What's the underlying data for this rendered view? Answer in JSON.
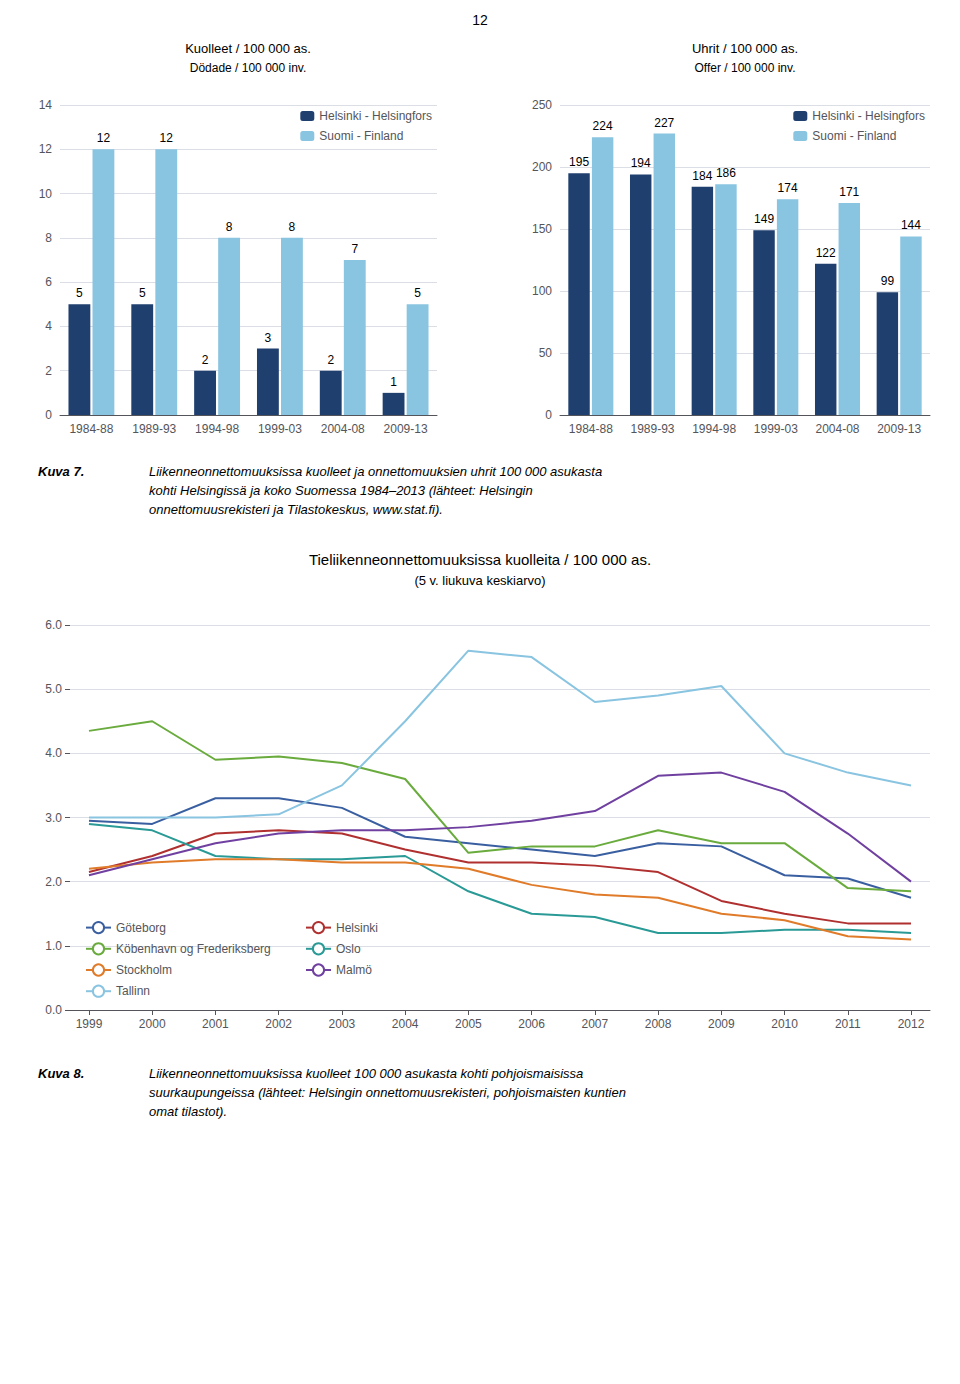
{
  "chart_data": [
    {
      "type": "bar",
      "title": "Kuolleet / 100 000 as.",
      "subtitle": "Dödade / 100 000 inv.",
      "categories": [
        "1984-88",
        "1989-93",
        "1994-98",
        "1999-03",
        "2004-08",
        "2009-13"
      ],
      "series": [
        {
          "name": "Helsinki - Helsingfors",
          "color": "#1f3f6e",
          "values": [
            5,
            5,
            2,
            3,
            2,
            1
          ]
        },
        {
          "name": "Suomi - Finland",
          "color": "#89c4e1",
          "values": [
            12,
            12,
            8,
            8,
            7,
            5
          ]
        }
      ],
      "ylim": [
        0,
        14
      ],
      "yticks": [
        0,
        2,
        4,
        6,
        8,
        10,
        12,
        14
      ],
      "grid": true,
      "legend": "upper right",
      "data_labels": true,
      "annotations": [
        "12"
      ]
    },
    {
      "type": "bar",
      "title": "Uhrit / 100 000 as.",
      "subtitle": "Offer / 100 000 inv.",
      "categories": [
        "1984-88",
        "1989-93",
        "1994-98",
        "1999-03",
        "2004-08",
        "2009-13"
      ],
      "series": [
        {
          "name": "Helsinki - Helsingfors",
          "color": "#1f3f6e",
          "values": [
            195,
            194,
            184,
            149,
            122,
            99
          ]
        },
        {
          "name": "Suomi - Finland",
          "color": "#89c4e1",
          "values": [
            224,
            227,
            186,
            174,
            171,
            144
          ]
        }
      ],
      "ylim": [
        0,
        250
      ],
      "yticks": [
        0,
        50,
        100,
        150,
        200,
        250
      ],
      "grid": true,
      "legend": "upper right",
      "data_labels": true,
      "annotations": [
        "Kuva 7.",
        "Liikenneonnettomuuksissa kuolleet ja onnettomuuksien uhrit 100 000 asukasta\nkohti Helsingissä ja koko Suomessa 1984–2013 (lähteet: Helsingin\nonnettomuusrekisteri ja Tilastokeskus, www.stat.fi)."
      ]
    },
    {
      "type": "line",
      "title": "Tieliikenneonnettomuuksissa kuolleita / 100 000 as.",
      "subtitle": "(5 v. liukuva keskiarvo)",
      "x": [
        1999,
        2000,
        2001,
        2002,
        2003,
        2004,
        2005,
        2006,
        2007,
        2008,
        2009,
        2010,
        2011,
        2012
      ],
      "series": [
        {
          "name": "Göteborg",
          "color": "#3a5fa0",
          "values": [
            2.95,
            2.9,
            3.3,
            3.3,
            3.15,
            2.7,
            2.6,
            2.5,
            2.4,
            2.6,
            2.55,
            2.1,
            2.05,
            1.75
          ]
        },
        {
          "name": "Helsinki",
          "color": "#b03030",
          "values": [
            2.15,
            2.4,
            2.75,
            2.8,
            2.75,
            2.5,
            2.3,
            2.3,
            2.25,
            2.15,
            1.7,
            1.5,
            1.35,
            1.35
          ]
        },
        {
          "name": "Köbenhavn og Frederiksberg",
          "color": "#6aab3e",
          "values": [
            4.35,
            4.5,
            3.9,
            3.95,
            3.85,
            3.6,
            2.45,
            2.55,
            2.55,
            2.8,
            2.6,
            2.6,
            1.9,
            1.85
          ]
        },
        {
          "name": "Oslo",
          "color": "#2a9a96",
          "values": [
            2.9,
            2.8,
            2.4,
            2.35,
            2.35,
            2.4,
            1.85,
            1.5,
            1.45,
            1.2,
            1.2,
            1.25,
            1.25,
            1.2
          ]
        },
        {
          "name": "Stockholm",
          "color": "#e07b2a",
          "values": [
            2.2,
            2.3,
            2.35,
            2.35,
            2.3,
            2.3,
            2.2,
            1.95,
            1.8,
            1.75,
            1.5,
            1.4,
            1.15,
            1.1
          ]
        },
        {
          "name": "Malmö",
          "color": "#7040a0",
          "values": [
            2.1,
            2.35,
            2.6,
            2.75,
            2.8,
            2.8,
            2.85,
            2.95,
            3.1,
            3.65,
            3.7,
            3.4,
            2.75,
            2.0
          ]
        },
        {
          "name": "Tallinn",
          "color": "#89c4e1",
          "values": [
            3.0,
            3.0,
            3.0,
            3.05,
            3.5,
            4.5,
            5.6,
            5.5,
            4.8,
            4.9,
            5.05,
            4.0,
            3.7,
            3.5
          ]
        }
      ],
      "xlim": [
        1998.7,
        2012.3
      ],
      "xticks": [
        1999,
        2000,
        2001,
        2002,
        2003,
        2004,
        2005,
        2006,
        2007,
        2008,
        2009,
        2010,
        2011,
        2012
      ],
      "ylim": [
        0.0,
        6.0
      ],
      "yticks": [
        {
          "value": 0.0,
          "label": "0.0"
        },
        {
          "value": 1.0,
          "label": "1.0"
        },
        {
          "value": 2.0,
          "label": "2.0"
        },
        {
          "value": 3.0,
          "label": "3.0"
        },
        {
          "value": 4.0,
          "label": "4.0"
        },
        {
          "value": 5.0,
          "label": "5.0"
        },
        {
          "value": 6.0,
          "label": "6.0"
        }
      ],
      "grid": true,
      "legend": "lower left",
      "marker": "none",
      "annotations": [
        "Kuva 8.",
        "Liikenneonnettomuuksissa kuolleet 100 000 asukasta kohti pohjoismaisissa\nsuurkaupungeissa (lähteet: Helsingin onnettomuusrekisteri, pohjoismaisten kuntien\nomat tilastot)."
      ]
    }
  ]
}
